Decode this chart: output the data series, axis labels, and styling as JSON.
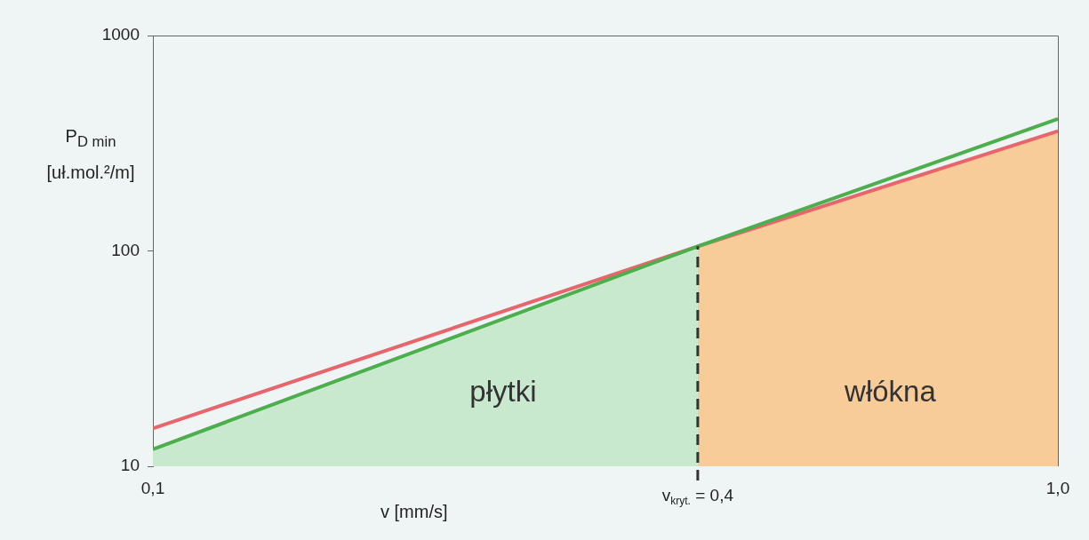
{
  "chart_data": {
    "type": "line",
    "xlabel": "v [mm/s]",
    "ylabel": "P$_{D min}$\n[uł.mol.²/m]",
    "series": [
      {
        "color": "#e8666b",
        "x": [
          0.1,
          0.4,
          1.0
        ],
        "values": [
          15,
          105,
          360
        ]
      },
      {
        "color": "#4cae4c",
        "x": [
          0.1,
          0.4,
          1.0
        ],
        "values": [
          12,
          105,
          410
        ]
      },
      {
        "type": "area",
        "name": "płytki",
        "color": "#c8e9cd",
        "x": [
          0.1,
          0.4
        ],
        "values": [
          12,
          105
        ]
      },
      {
        "type": "area",
        "name": "włókna",
        "color": "#f8cc98",
        "x": [
          0.4,
          1.0
        ],
        "values": [
          105,
          360
        ]
      }
    ],
    "xlim": [
      0.1,
      1.0
    ],
    "ylim": [
      10,
      1000
    ],
    "xticks": [
      {
        "value": 0.1,
        "label": "0,1"
      },
      {
        "value": 1.0,
        "label": "1,0"
      }
    ],
    "yticks": [
      10,
      100,
      1000
    ],
    "log": "xy",
    "grid": false,
    "legend": false,
    "marker": "none",
    "ref_lines": [
      {
        "axis": "x",
        "value": 0.4,
        "label": "v$_{kryt.}$ = 0,4",
        "color": "#333333",
        "line_style": "dashed"
      }
    ]
  }
}
